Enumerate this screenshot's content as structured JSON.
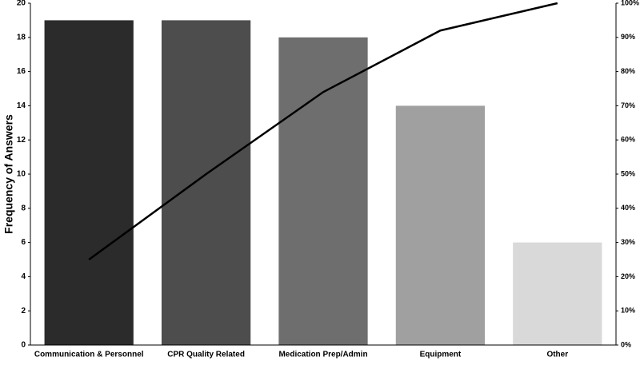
{
  "chart_data": {
    "type": "bar",
    "y_label": "Frequency of Answers",
    "categories": [
      "Communication & Personnel",
      "CPR Quality Related",
      "Medication Prep/Admin",
      "Equipment",
      "Other"
    ],
    "series": [
      {
        "type": "bar",
        "values": [
          19,
          19,
          18,
          14,
          6
        ],
        "colors": [
          "#2b2b2b",
          "#4d4d4d",
          "#6e6e6e",
          "#a0a0a0",
          "#d9d9d9"
        ]
      },
      {
        "type": "line",
        "axis": "y2",
        "color": "#000000",
        "values": [
          25,
          50,
          74,
          92,
          100
        ]
      }
    ],
    "ylim": [
      0,
      20
    ],
    "yticks": [
      0,
      2,
      4,
      6,
      8,
      10,
      12,
      14,
      16,
      18,
      20
    ],
    "y2lim": [
      0,
      100
    ],
    "y2ticks": [
      {
        "value": 0,
        "label": "0%"
      },
      {
        "value": 10,
        "label": "10%"
      },
      {
        "value": 20,
        "label": "20%"
      },
      {
        "value": 30,
        "label": "30%"
      },
      {
        "value": 40,
        "label": "40%"
      },
      {
        "value": 50,
        "label": "50%"
      },
      {
        "value": 60,
        "label": "60%"
      },
      {
        "value": 70,
        "label": "70%"
      },
      {
        "value": 80,
        "label": "80%"
      },
      {
        "value": 90,
        "label": "90%"
      },
      {
        "value": 100,
        "label": "100%"
      }
    ]
  }
}
